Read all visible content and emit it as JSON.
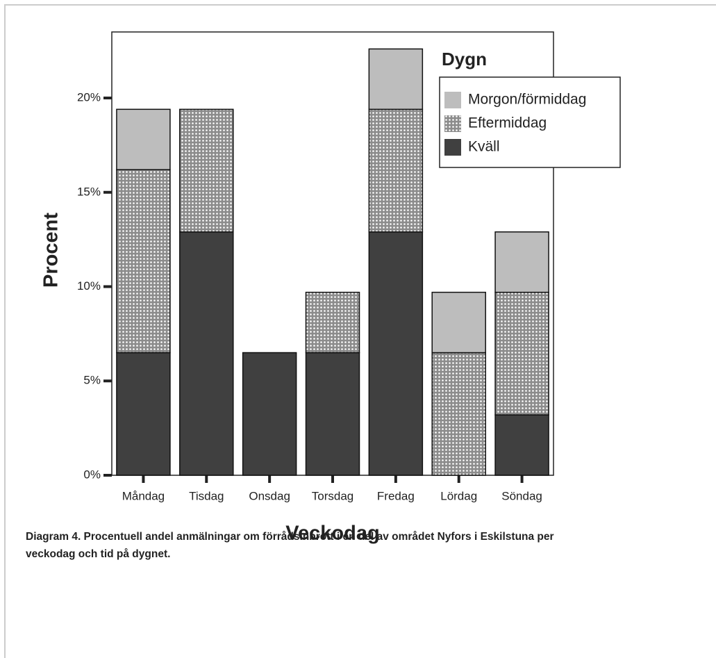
{
  "chart_data": {
    "type": "stacked_bar",
    "xlabel": "Veckodag",
    "ylabel": "Procent",
    "legend_title": "Dygn",
    "legend": "upper right",
    "categories": [
      "Måndag",
      "Tisdag",
      "Onsdag",
      "Torsdag",
      "Fredag",
      "Lördag",
      "Söndag"
    ],
    "series": [
      {
        "name": "Kväll",
        "color": "#404040",
        "values": [
          6.5,
          12.9,
          6.5,
          6.5,
          12.9,
          0,
          3.2
        ]
      },
      {
        "name": "Eftermiddag",
        "color": "#8c8c8c",
        "pattern": "dots",
        "values": [
          9.7,
          6.5,
          0,
          3.2,
          6.5,
          6.5,
          6.5
        ]
      },
      {
        "name": "Morgon/förmiddag",
        "color": "#bdbdbd",
        "values": [
          3.2,
          0,
          0,
          0,
          3.2,
          3.2,
          3.2
        ]
      }
    ],
    "ylim": [
      0,
      23.5
    ],
    "yticks": [
      {
        "value": 0,
        "label": "0%"
      },
      {
        "value": 5,
        "label": "5%"
      },
      {
        "value": 10,
        "label": "10%"
      },
      {
        "value": 15,
        "label": "15%"
      },
      {
        "value": 20,
        "label": "20%"
      }
    ],
    "caption": "Diagram 4. Procentuell andel anmälningar om förrådsinbrott i en del av området Nyfors i Eskilstuna per veckodag och tid på dygnet."
  }
}
